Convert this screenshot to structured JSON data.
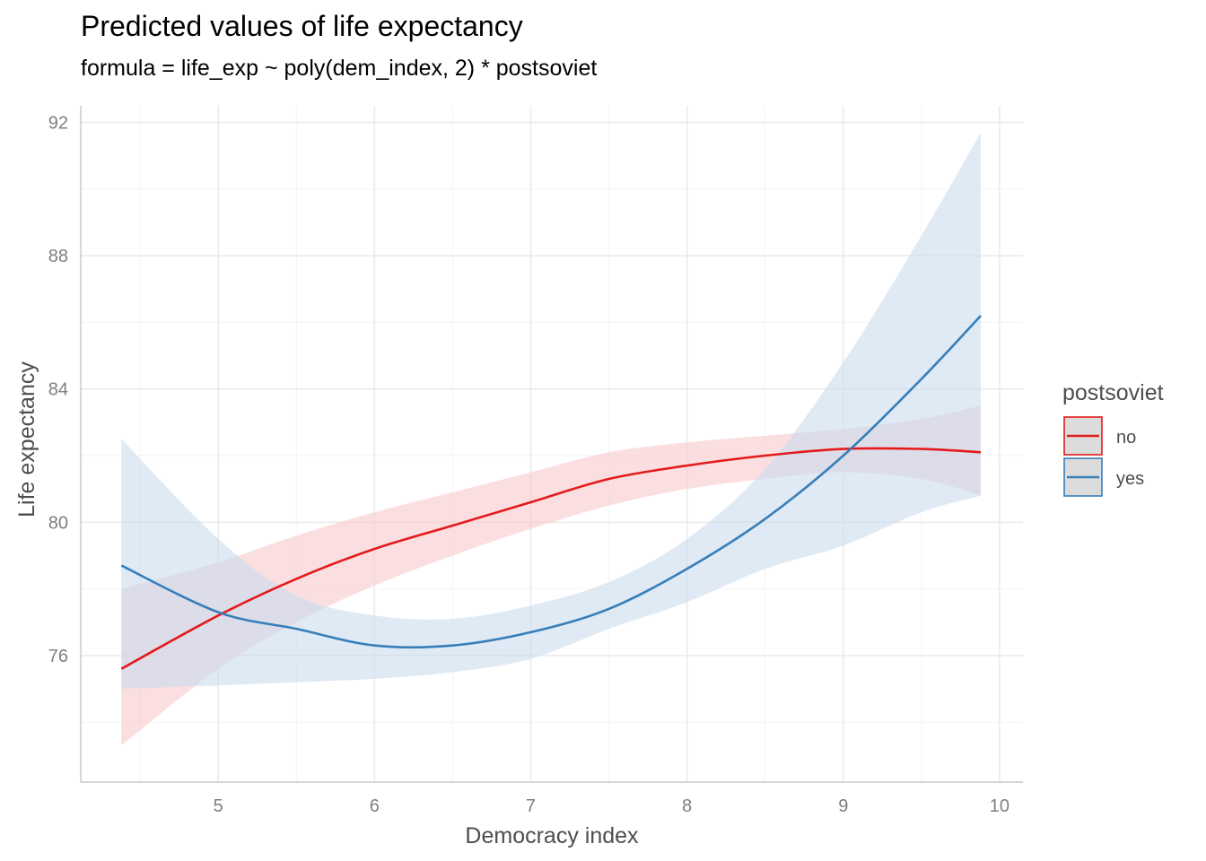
{
  "chart_data": {
    "type": "line",
    "title": "Predicted values of life expectancy",
    "subtitle": "formula = life_exp ~ poly(dem_index, 2) * postsoviet",
    "xlabel": "Democracy index",
    "ylabel": "Life expectancy",
    "xlim": [
      4.12,
      10.15
    ],
    "ylim": [
      72.2,
      92.5
    ],
    "x_ticks": [
      5,
      6,
      7,
      8,
      9,
      10
    ],
    "y_ticks": [
      76,
      80,
      84,
      88,
      92
    ],
    "grid": true,
    "legend": {
      "title": "postsoviet",
      "position": "right"
    },
    "series": [
      {
        "name": "no",
        "color": "#e41a1c",
        "fill": "#f8c9cc",
        "x": [
          4.38,
          5.0,
          5.5,
          6.0,
          6.5,
          7.0,
          7.5,
          8.0,
          8.5,
          9.0,
          9.5,
          9.88
        ],
        "values": [
          75.6,
          77.2,
          78.3,
          79.2,
          79.9,
          80.6,
          81.3,
          81.7,
          82.0,
          82.2,
          82.2,
          82.1
        ],
        "lower": [
          73.3,
          75.6,
          77.0,
          78.1,
          79.0,
          79.8,
          80.5,
          81.0,
          81.3,
          81.5,
          81.3,
          80.8
        ],
        "upper": [
          78.0,
          78.8,
          79.6,
          80.3,
          80.9,
          81.5,
          82.1,
          82.4,
          82.6,
          82.8,
          83.1,
          83.5
        ]
      },
      {
        "name": "yes",
        "color": "#377eb8",
        "fill": "#cadcee",
        "x": [
          4.38,
          5.0,
          5.5,
          6.0,
          6.5,
          7.0,
          7.5,
          8.0,
          8.5,
          9.0,
          9.5,
          9.88
        ],
        "values": [
          78.7,
          77.3,
          76.8,
          76.3,
          76.3,
          76.7,
          77.4,
          78.6,
          80.1,
          82.0,
          84.3,
          86.2
        ],
        "lower": [
          75.0,
          75.1,
          75.2,
          75.3,
          75.5,
          75.9,
          76.8,
          77.6,
          78.6,
          79.3,
          80.3,
          80.8
        ],
        "upper": [
          82.5,
          79.5,
          77.8,
          77.2,
          77.1,
          77.5,
          78.2,
          79.5,
          81.6,
          84.8,
          88.6,
          91.7
        ]
      }
    ]
  }
}
